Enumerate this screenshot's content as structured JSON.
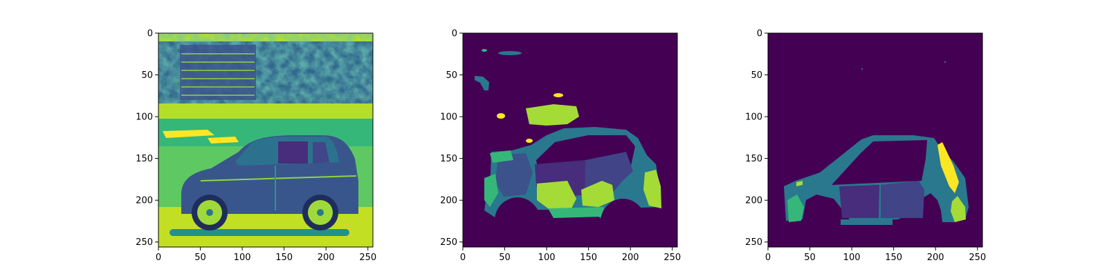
{
  "figure": {
    "background": "#ffffff",
    "colormap": "viridis",
    "colors": {
      "background_class": "#440154",
      "class_1": "#414487",
      "class_2": "#2a788e",
      "class_3": "#22a884",
      "class_4": "#a5db36",
      "class_5": "#fde725",
      "class_6": "#3b528b"
    }
  },
  "chart_data": [
    {
      "type": "heatmap",
      "content": "grayscale car photo rendered with viridis colormap",
      "xlim": [
        0,
        255
      ],
      "ylim": [
        255,
        0
      ],
      "xticks": [
        0,
        50,
        100,
        150,
        200,
        250
      ],
      "yticks": [
        0,
        50,
        100,
        150,
        200,
        250
      ],
      "xlabel": "",
      "ylabel": "",
      "grid": false
    },
    {
      "type": "heatmap",
      "content": "predicted segmentation mask",
      "xlim": [
        0,
        255
      ],
      "ylim": [
        255,
        0
      ],
      "xticks": [
        0,
        50,
        100,
        150,
        200,
        250
      ],
      "yticks": [
        0,
        50,
        100,
        150,
        200,
        250
      ],
      "xlabel": "",
      "ylabel": "",
      "grid": false
    },
    {
      "type": "heatmap",
      "content": "ground-truth segmentation mask",
      "xlim": [
        0,
        255
      ],
      "ylim": [
        255,
        0
      ],
      "xticks": [
        0,
        50,
        100,
        150,
        200,
        250
      ],
      "yticks": [
        0,
        50,
        100,
        150,
        200,
        250
      ],
      "xlabel": "",
      "ylabel": "",
      "grid": false
    }
  ]
}
